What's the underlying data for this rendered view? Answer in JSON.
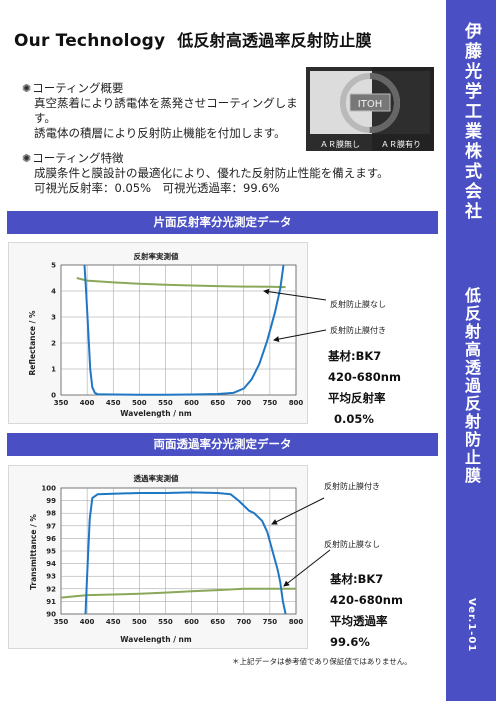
{
  "header": {
    "title_en": "Our Technology",
    "title_jp": "低反射高透過率反射防止膜"
  },
  "sidebar": {
    "company": "伊藤光学工業株式会社",
    "product": "低反射高透過反射防止膜",
    "version": "Ver.1-01"
  },
  "overview": {
    "heading": "コーティング概要",
    "lines": [
      "真空蒸着により誘電体を蒸発させコーティングします。",
      "誘電体の積層により反射防止機能を付加します。"
    ]
  },
  "features": {
    "heading": "コーティング特徴",
    "lines": [
      "成膜条件と膜設計の最適化により、優れた反射防止性能を備えます。",
      "可視光反射率：0.05%　可視光透過率：99.6%"
    ]
  },
  "photo": {
    "logo_text": "ITOH",
    "label_left": "ＡＲ膜無し",
    "label_right": "ＡＲ膜有り"
  },
  "reflect_section": {
    "banner": "片面反射率分光測定データ",
    "label_no_coat": "反射防止膜なし",
    "label_coat": "反射防止膜付き",
    "spec": [
      "基材:BK7",
      "420-680nm",
      "平均反射率",
      "0.05%"
    ]
  },
  "trans_section": {
    "banner": "両面透過率分光測定データ",
    "label_coat": "反射防止膜付き",
    "label_no_coat": "反射防止膜なし",
    "spec": [
      "基材:BK7",
      "420-680nm",
      "平均透過率",
      "99.6%"
    ]
  },
  "footnote": "＊上記データは参考値であり保証値ではありません。",
  "colors": {
    "accent": "#4a4fc4",
    "coated_line": "#1f77c4",
    "uncoated_line": "#8aa85a"
  },
  "chart_data": [
    {
      "type": "line",
      "title": "反射率実測値",
      "xlabel": "Wavelength / nm",
      "ylabel": "Reflectance / %",
      "xlim": [
        350,
        800
      ],
      "ylim": [
        0,
        5
      ],
      "xticks": [
        350,
        400,
        450,
        500,
        550,
        600,
        650,
        700,
        750,
        800
      ],
      "yticks": [
        0,
        1,
        2,
        3,
        4,
        5
      ],
      "grid": true,
      "series": [
        {
          "name": "反射防止膜なし",
          "color": "#8aa85a",
          "points": [
            [
              380,
              4.5
            ],
            [
              400,
              4.4
            ],
            [
              450,
              4.33
            ],
            [
              500,
              4.28
            ],
            [
              550,
              4.24
            ],
            [
              600,
              4.21
            ],
            [
              650,
              4.19
            ],
            [
              700,
              4.17
            ],
            [
              750,
              4.16
            ],
            [
              780,
              4.15
            ]
          ]
        },
        {
          "name": "反射防止膜付き",
          "color": "#1f77c4",
          "points": [
            [
              395,
              5
            ],
            [
              398,
              4
            ],
            [
              402,
              2.5
            ],
            [
              406,
              1.0
            ],
            [
              410,
              0.3
            ],
            [
              415,
              0.08
            ],
            [
              420,
              0.03
            ],
            [
              450,
              0.02
            ],
            [
              500,
              0.01
            ],
            [
              550,
              0.01
            ],
            [
              600,
              0.02
            ],
            [
              650,
              0.04
            ],
            [
              680,
              0.08
            ],
            [
              700,
              0.25
            ],
            [
              715,
              0.6
            ],
            [
              730,
              1.2
            ],
            [
              745,
              2.1
            ],
            [
              760,
              3.2
            ],
            [
              770,
              4.1
            ],
            [
              776,
              5
            ]
          ]
        }
      ]
    },
    {
      "type": "line",
      "title": "透過率実測値",
      "xlabel": "Wavelength / nm",
      "ylabel": "Transmittance / %",
      "xlim": [
        350,
        800
      ],
      "ylim": [
        90,
        100
      ],
      "xticks": [
        350,
        400,
        450,
        500,
        550,
        600,
        650,
        700,
        750,
        800
      ],
      "yticks": [
        90,
        91,
        92,
        93,
        94,
        95,
        96,
        97,
        98,
        99,
        100
      ],
      "grid": true,
      "series": [
        {
          "name": "反射防止膜なし",
          "color": "#8aa85a",
          "points": [
            [
              350,
              91.3
            ],
            [
              400,
              91.5
            ],
            [
              450,
              91.55
            ],
            [
              500,
              91.6
            ],
            [
              550,
              91.7
            ],
            [
              600,
              91.8
            ],
            [
              650,
              91.9
            ],
            [
              700,
              92.0
            ],
            [
              750,
              92.0
            ],
            [
              800,
              92.0
            ]
          ]
        },
        {
          "name": "反射防止膜付き",
          "color": "#1f77c4",
          "points": [
            [
              397,
              90
            ],
            [
              400,
              93
            ],
            [
              405,
              97.5
            ],
            [
              410,
              99.2
            ],
            [
              420,
              99.5
            ],
            [
              450,
              99.55
            ],
            [
              500,
              99.6
            ],
            [
              550,
              99.6
            ],
            [
              600,
              99.65
            ],
            [
              650,
              99.6
            ],
            [
              675,
              99.5
            ],
            [
              690,
              99.0
            ],
            [
              700,
              98.6
            ],
            [
              710,
              98.2
            ],
            [
              720,
              98.0
            ],
            [
              735,
              97.4
            ],
            [
              745,
              96.5
            ],
            [
              755,
              95.0
            ],
            [
              765,
              93.5
            ],
            [
              770,
              92.5
            ],
            [
              775,
              91.0
            ],
            [
              780,
              90
            ]
          ]
        }
      ]
    }
  ]
}
